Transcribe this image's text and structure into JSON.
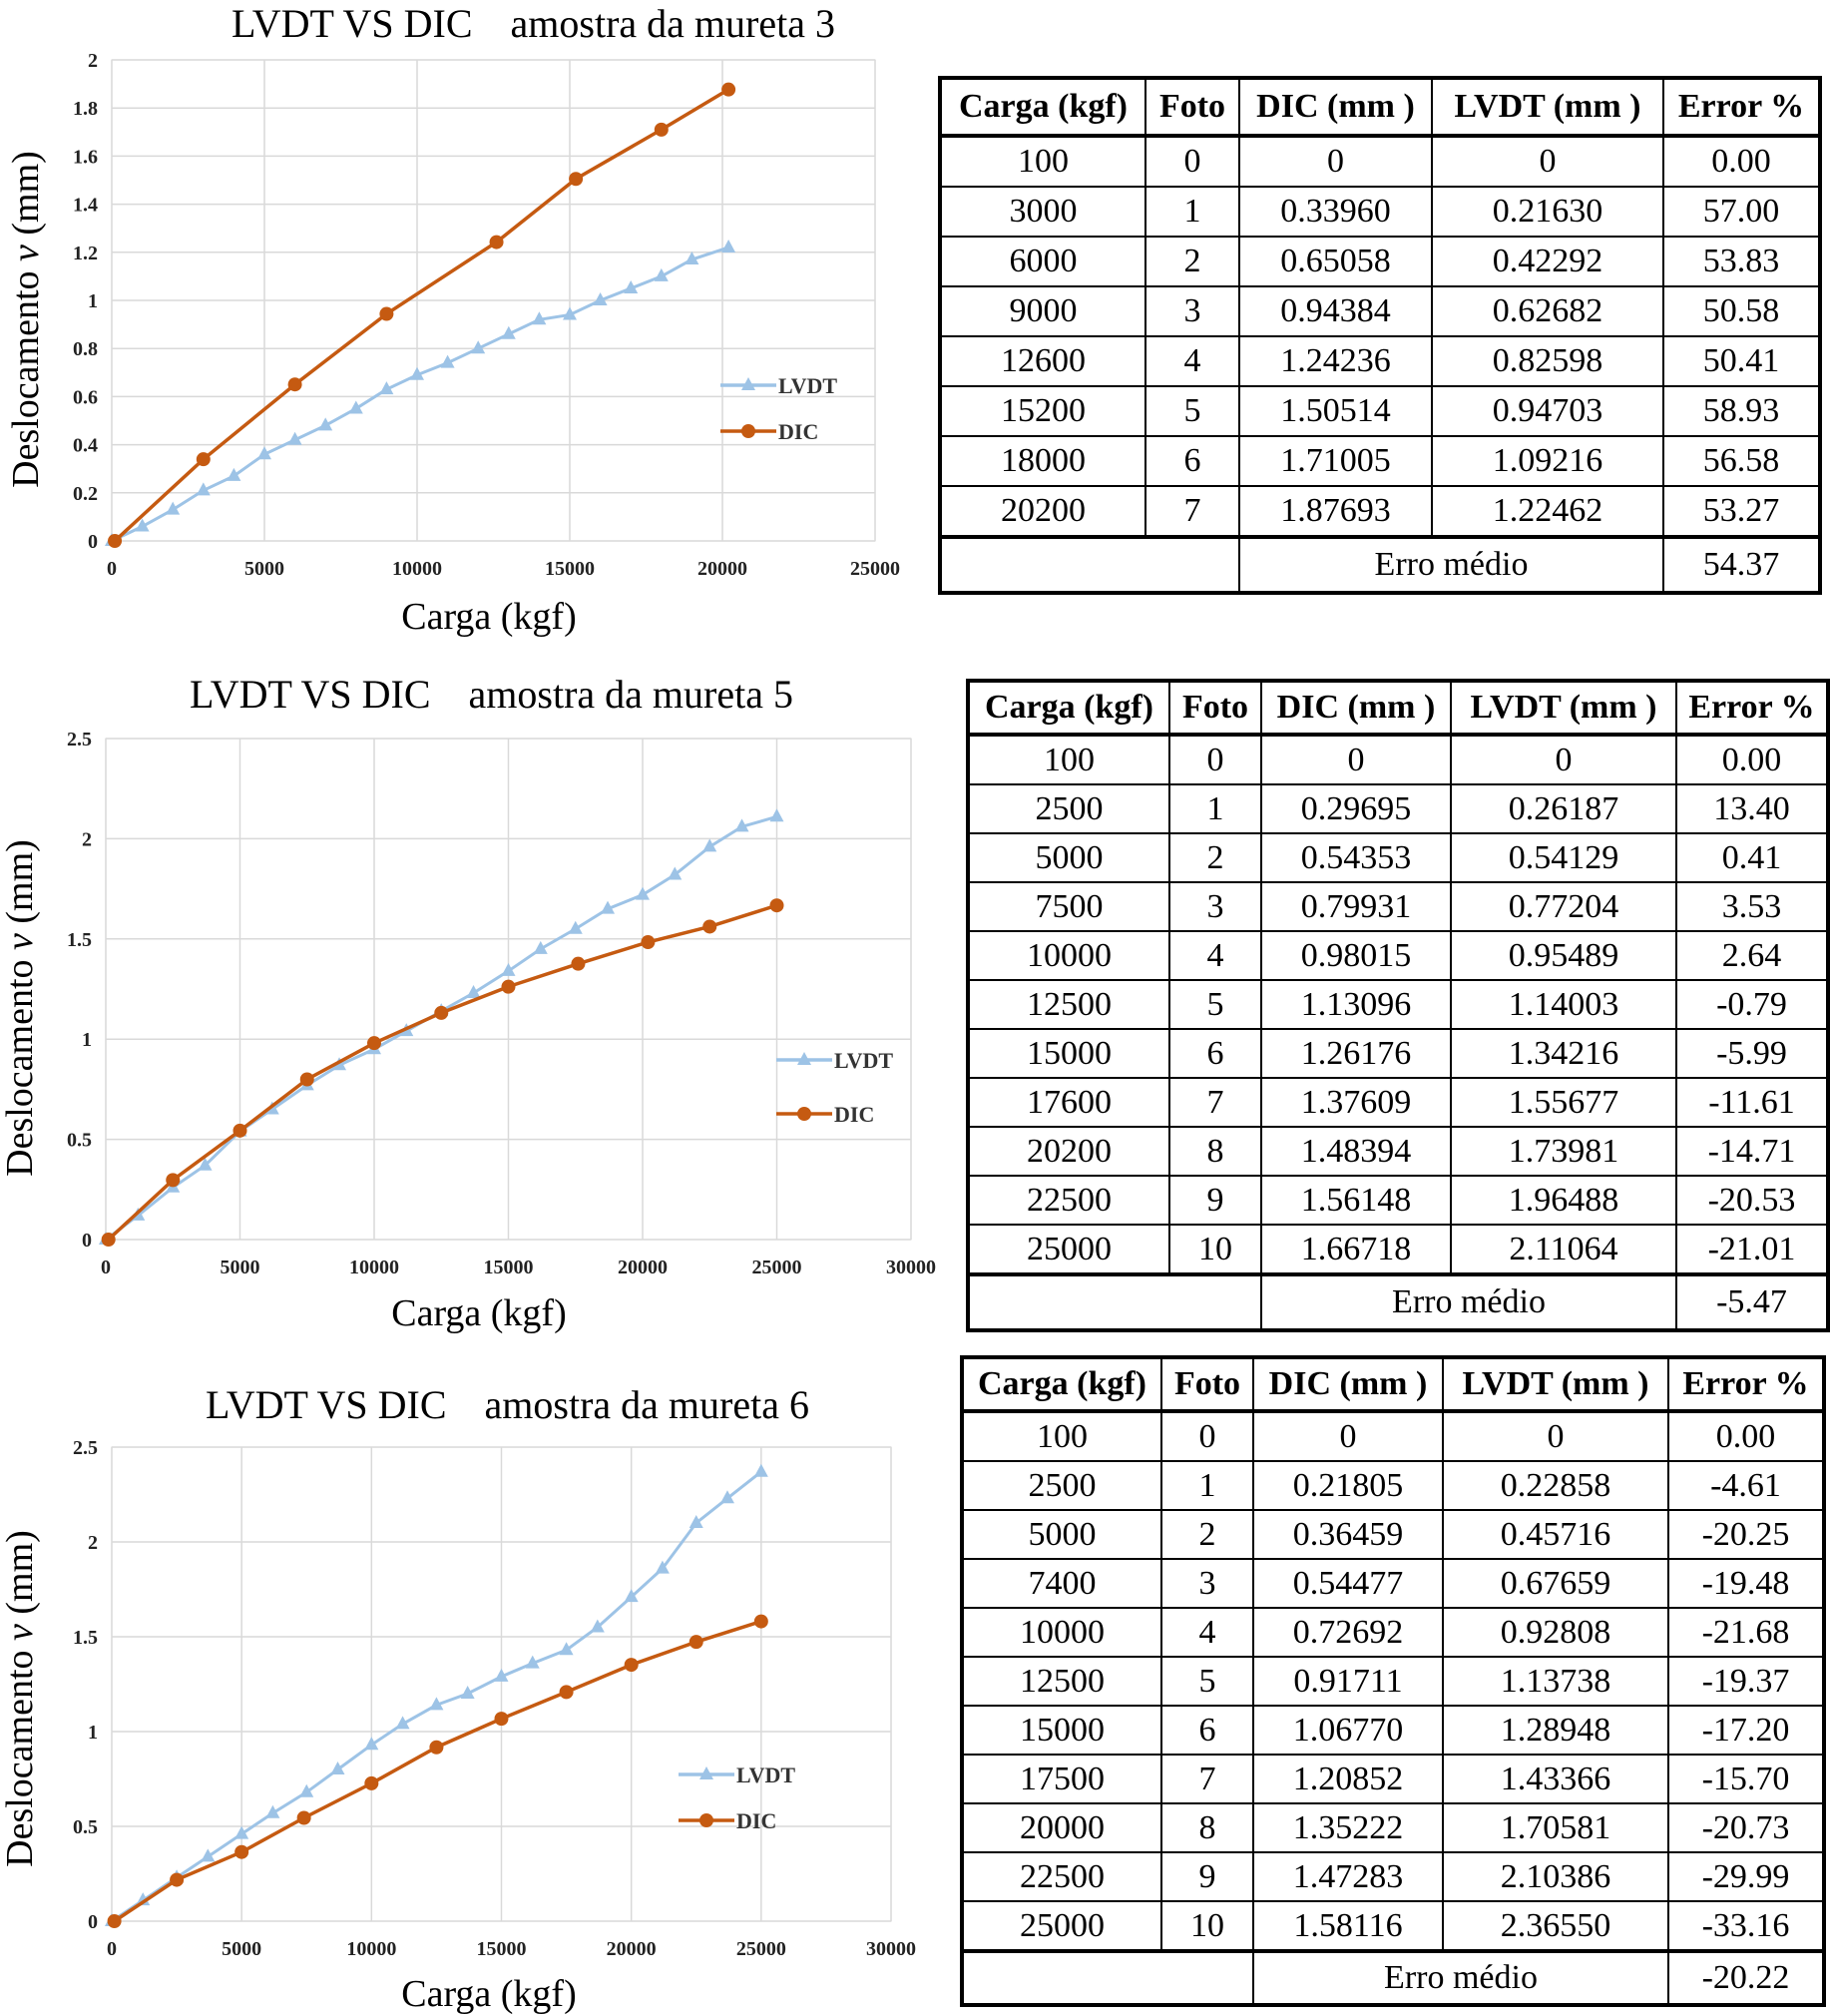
{
  "panels": [
    {
      "title_left": "LVDT VS DIC",
      "title_right": "amostra da mureta 3",
      "table": {
        "headers": [
          "Carga (kgf)",
          "Foto",
          "DIC (mm )",
          "LVDT (mm )",
          "Error %"
        ],
        "rows": [
          [
            "100",
            "0",
            "0",
            "0",
            "0.00"
          ],
          [
            "3000",
            "1",
            "0.33960",
            "0.21630",
            "57.00"
          ],
          [
            "6000",
            "2",
            "0.65058",
            "0.42292",
            "53.83"
          ],
          [
            "9000",
            "3",
            "0.94384",
            "0.62682",
            "50.58"
          ],
          [
            "12600",
            "4",
            "1.24236",
            "0.82598",
            "50.41"
          ],
          [
            "15200",
            "5",
            "1.50514",
            "0.94703",
            "58.93"
          ],
          [
            "18000",
            "6",
            "1.71005",
            "1.09216",
            "56.58"
          ],
          [
            "20200",
            "7",
            "1.87693",
            "1.22462",
            "53.27"
          ]
        ],
        "footer_label": "Erro  médio",
        "footer_value": "54.37"
      }
    },
    {
      "title_left": "LVDT VS DIC",
      "title_right": "amostra da mureta 5",
      "table": {
        "headers": [
          "Carga (kgf)",
          "Foto",
          "DIC (mm )",
          "LVDT (mm )",
          "Error %"
        ],
        "rows": [
          [
            "100",
            "0",
            "0",
            "0",
            "0.00"
          ],
          [
            "2500",
            "1",
            "0.29695",
            "0.26187",
            "13.40"
          ],
          [
            "5000",
            "2",
            "0.54353",
            "0.54129",
            "0.41"
          ],
          [
            "7500",
            "3",
            "0.79931",
            "0.77204",
            "3.53"
          ],
          [
            "10000",
            "4",
            "0.98015",
            "0.95489",
            "2.64"
          ],
          [
            "12500",
            "5",
            "1.13096",
            "1.14003",
            "-0.79"
          ],
          [
            "15000",
            "6",
            "1.26176",
            "1.34216",
            "-5.99"
          ],
          [
            "17600",
            "7",
            "1.37609",
            "1.55677",
            "-11.61"
          ],
          [
            "20200",
            "8",
            "1.48394",
            "1.73981",
            "-14.71"
          ],
          [
            "22500",
            "9",
            "1.56148",
            "1.96488",
            "-20.53"
          ],
          [
            "25000",
            "10",
            "1.66718",
            "2.11064",
            "-21.01"
          ]
        ],
        "footer_label": "Erro      médio",
        "footer_value": "-5.47"
      }
    },
    {
      "title_left": "LVDT VS DIC",
      "title_right": "amostra da mureta 6",
      "table": {
        "headers": [
          "Carga (kgf)",
          "Foto",
          "DIC (mm )",
          "LVDT (mm )",
          "Error %"
        ],
        "rows": [
          [
            "100",
            "0",
            "0",
            "0",
            "0.00"
          ],
          [
            "2500",
            "1",
            "0.21805",
            "0.22858",
            "-4.61"
          ],
          [
            "5000",
            "2",
            "0.36459",
            "0.45716",
            "-20.25"
          ],
          [
            "7400",
            "3",
            "0.54477",
            "0.67659",
            "-19.48"
          ],
          [
            "10000",
            "4",
            "0.72692",
            "0.92808",
            "-21.68"
          ],
          [
            "12500",
            "5",
            "0.91711",
            "1.13738",
            "-19.37"
          ],
          [
            "15000",
            "6",
            "1.06770",
            "1.28948",
            "-17.20"
          ],
          [
            "17500",
            "7",
            "1.20852",
            "1.43366",
            "-15.70"
          ],
          [
            "20000",
            "8",
            "1.35222",
            "1.70581",
            "-20.73"
          ],
          [
            "22500",
            "9",
            "1.47283",
            "2.10386",
            "-29.99"
          ],
          [
            "25000",
            "10",
            "1.58116",
            "2.36550",
            "-33.16"
          ]
        ],
        "footer_label": "Erro  médio",
        "footer_value": "-20.22"
      }
    }
  ],
  "chart_data": [
    {
      "type": "line",
      "title": "LVDT VS DIC   amostra da mureta 3",
      "xlabel": "Carga (kgf)",
      "ylabel_prefix": "Deslocamento ",
      "ylabel_var": "v",
      "ylabel_suffix": " (mm)",
      "xlim": [
        0,
        25000
      ],
      "ylim": [
        0,
        2
      ],
      "xticks": [
        0,
        5000,
        10000,
        15000,
        20000,
        25000
      ],
      "yticks": [
        0,
        0.2,
        0.4,
        0.6,
        0.8,
        1,
        1.2,
        1.4,
        1.6,
        1.8,
        2
      ],
      "ytick_labels": [
        "0",
        "0.2",
        "0.4",
        "0.6",
        "0.8",
        "1",
        "1.2",
        "1.4",
        "1.6",
        "1.8",
        "2"
      ],
      "legend_position": "right",
      "series": [
        {
          "name": "LVDT",
          "color": "#9dc3e6",
          "marker": "triangle",
          "x": [
            0,
            1000,
            2000,
            3000,
            4000,
            5000,
            6000,
            7000,
            8000,
            9000,
            10000,
            11000,
            12000,
            13000,
            14000,
            15000,
            16000,
            17000,
            18000,
            19000,
            20200
          ],
          "y": [
            0,
            0.06,
            0.13,
            0.21,
            0.27,
            0.36,
            0.42,
            0.48,
            0.55,
            0.63,
            0.69,
            0.74,
            0.8,
            0.86,
            0.92,
            0.94,
            1.0,
            1.05,
            1.1,
            1.17,
            1.22
          ]
        },
        {
          "name": "DIC",
          "color": "#c55a11",
          "marker": "circle",
          "x": [
            100,
            3000,
            6000,
            9000,
            12600,
            15200,
            18000,
            20200
          ],
          "y": [
            0,
            0.3396,
            0.65058,
            0.94384,
            1.24236,
            1.50514,
            1.71005,
            1.87693
          ]
        }
      ]
    },
    {
      "type": "line",
      "title": "LVDT VS DIC   amostra da mureta 5",
      "xlabel": "Carga (kgf)",
      "ylabel_prefix": "Deslocamento ",
      "ylabel_var": "v",
      "ylabel_suffix": " (mm)",
      "xlim": [
        0,
        30000
      ],
      "ylim": [
        0,
        2.5
      ],
      "xticks": [
        0,
        5000,
        10000,
        15000,
        20000,
        25000,
        30000
      ],
      "yticks": [
        0,
        0.5,
        1,
        1.5,
        2,
        2.5
      ],
      "ytick_labels": [
        "0",
        "0.5",
        "1",
        "1.5",
        "2",
        "2.5"
      ],
      "legend_position": "right",
      "series": [
        {
          "name": "LVDT",
          "color": "#9dc3e6",
          "marker": "triangle",
          "x": [
            0,
            1200,
            2500,
            3700,
            5000,
            6200,
            7500,
            8700,
            10000,
            11200,
            12500,
            13700,
            15000,
            16200,
            17500,
            18700,
            20000,
            21200,
            22500,
            23700,
            25000
          ],
          "y": [
            0,
            0.12,
            0.26,
            0.37,
            0.54,
            0.65,
            0.77,
            0.87,
            0.95,
            1.04,
            1.14,
            1.23,
            1.34,
            1.45,
            1.55,
            1.65,
            1.72,
            1.82,
            1.96,
            2.06,
            2.11
          ]
        },
        {
          "name": "DIC",
          "color": "#c55a11",
          "marker": "circle",
          "x": [
            100,
            2500,
            5000,
            7500,
            10000,
            12500,
            15000,
            17600,
            20200,
            22500,
            25000
          ],
          "y": [
            0,
            0.29695,
            0.54353,
            0.79931,
            0.98015,
            1.13096,
            1.26176,
            1.37609,
            1.48394,
            1.56148,
            1.66718
          ]
        }
      ]
    },
    {
      "type": "line",
      "title": "LVDT VS DIC   amostra da mureta 6",
      "xlabel": "Carga (kgf)",
      "ylabel_prefix": "Deslocamento ",
      "ylabel_var": "v",
      "ylabel_suffix": " (mm)",
      "xlim": [
        0,
        30000
      ],
      "ylim": [
        0,
        2.5
      ],
      "xticks": [
        0,
        5000,
        10000,
        15000,
        20000,
        25000,
        30000
      ],
      "yticks": [
        0,
        0.5,
        1,
        1.5,
        2,
        2.5
      ],
      "ytick_labels": [
        "0",
        "0.5",
        "1",
        "1.5",
        "2",
        "2.5"
      ],
      "legend_position": "right",
      "series": [
        {
          "name": "LVDT",
          "color": "#9dc3e6",
          "marker": "triangle",
          "x": [
            0,
            1200,
            2500,
            3700,
            5000,
            6200,
            7500,
            8700,
            10000,
            11200,
            12500,
            13700,
            15000,
            16200,
            17500,
            18700,
            20000,
            21200,
            22500,
            23700,
            25000
          ],
          "y": [
            0,
            0.11,
            0.23,
            0.34,
            0.46,
            0.57,
            0.68,
            0.8,
            0.93,
            1.04,
            1.14,
            1.2,
            1.29,
            1.36,
            1.43,
            1.55,
            1.71,
            1.86,
            2.1,
            2.23,
            2.37
          ]
        },
        {
          "name": "DIC",
          "color": "#c55a11",
          "marker": "circle",
          "x": [
            100,
            2500,
            5000,
            7400,
            10000,
            12500,
            15000,
            17500,
            20000,
            22500,
            25000
          ],
          "y": [
            0,
            0.21805,
            0.36459,
            0.54477,
            0.72692,
            0.91711,
            1.0677,
            1.20852,
            1.35222,
            1.47283,
            1.58116
          ]
        }
      ]
    }
  ]
}
